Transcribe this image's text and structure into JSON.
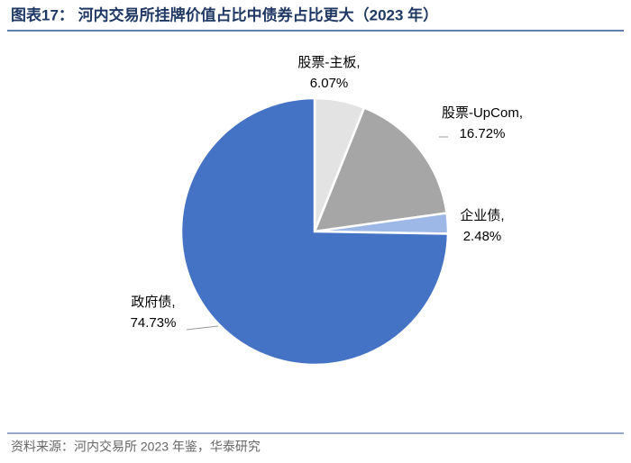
{
  "chart_data": {
    "type": "pie",
    "title": "图表17： 河内交易所挂牌价值占比中债券占比更大（2023 年）",
    "source": "资料来源：河内交易所 2023 年鉴，华泰研究",
    "categories": [
      "股票-主板,",
      "股票-UpCom,",
      "企业债,",
      "政府债,"
    ],
    "values": [
      6.07,
      16.72,
      2.48,
      74.73
    ],
    "value_labels": [
      "6.07%",
      "16.72%",
      "2.48%",
      "74.73%"
    ],
    "colors": [
      "#e3e3e3",
      "#a6a6a6",
      "#9db8e6",
      "#4472c4"
    ]
  }
}
